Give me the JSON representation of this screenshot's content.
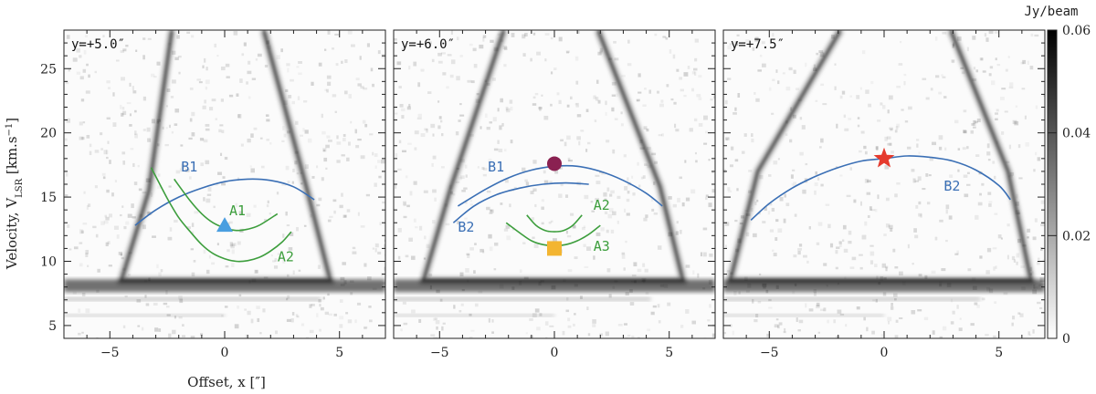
{
  "chart_data": {
    "type": "position-velocity diagram",
    "shared": {
      "xlabel": "Offset, x [″]",
      "ylabel_main": "Velocity, V",
      "ylabel_sub": "LSR",
      "ylabel_unit_pre": " [km.s",
      "ylabel_unit_exp": "−1",
      "ylabel_unit_post": "]",
      "xlim": [
        -7,
        7
      ],
      "ylim": [
        4,
        28
      ],
      "xticks": [
        -5,
        0,
        5
      ],
      "yticks": [
        5,
        10,
        15,
        20,
        25
      ],
      "colorbar": {
        "label": "Jy/beam",
        "range": [
          0,
          0.06
        ],
        "ticks": [
          "0",
          "0.02",
          "0.04",
          "0.06"
        ],
        "tick_values": [
          0,
          0.02,
          0.04,
          0.06
        ],
        "colormap": "grayscale (white to black)"
      }
    },
    "panels": [
      {
        "label": "y=+5.0″",
        "curves": [
          {
            "name": "B1",
            "color": "#3a6fb5",
            "x": [
              -3.9,
              -3,
              -2,
              -1,
              0,
              1,
              2,
              3,
              3.9
            ],
            "y": [
              12.8,
              14.0,
              15.0,
              15.7,
              16.2,
              16.4,
              16.3,
              15.8,
              14.8
            ],
            "label_x": -1.9,
            "label_y": 17.0
          },
          {
            "name": "A1",
            "color": "#3d9e3d",
            "x": [
              -2.2,
              -1.5,
              -1,
              -0.5,
              0,
              0.5,
              1,
              1.5,
              2.3
            ],
            "y": [
              16.4,
              14.7,
              13.7,
              13.0,
              12.6,
              12.4,
              12.5,
              12.8,
              13.7
            ],
            "label_x": 0.2,
            "label_y": 13.6
          },
          {
            "name": "A2",
            "color": "#3d9e3d",
            "x": [
              -3.2,
              -2.5,
              -2,
              -1.5,
              -1,
              -0.5,
              0,
              0.5,
              1,
              1.5,
              2,
              2.5,
              2.9
            ],
            "y": [
              17.3,
              14.9,
              13.4,
              12.3,
              11.3,
              10.6,
              10.2,
              10.0,
              10.05,
              10.3,
              10.8,
              11.5,
              12.3
            ],
            "label_x": 2.3,
            "label_y": 10.0
          }
        ],
        "markers": [
          {
            "name": "triangle",
            "color": "#4a9ee0",
            "x": 0.0,
            "y": 12.8
          }
        ]
      },
      {
        "label": "y=+6.0″",
        "curves": [
          {
            "name": "B1",
            "color": "#3a6fb5",
            "x": [
              -4.2,
              -3,
              -2,
              -1,
              0,
              1,
              2,
              3,
              4,
              4.7
            ],
            "y": [
              14.3,
              15.6,
              16.5,
              17.1,
              17.4,
              17.4,
              17.0,
              16.3,
              15.3,
              14.3
            ],
            "label_x": -2.9,
            "label_y": 17.0
          },
          {
            "name": "B2",
            "color": "#3a6fb5",
            "x": [
              -4.4,
              -3.5,
              -2.5,
              -1.5,
              -0.5,
              0.5,
              1.5
            ],
            "y": [
              13.0,
              14.3,
              15.2,
              15.7,
              16.0,
              16.1,
              16.0
            ],
            "label_x": -4.2,
            "label_y": 12.3
          },
          {
            "name": "A2",
            "color": "#3d9e3d",
            "x": [
              -1.2,
              -0.8,
              -0.4,
              0,
              0.4,
              0.8,
              1.2
            ],
            "y": [
              13.6,
              12.8,
              12.4,
              12.3,
              12.4,
              12.8,
              13.6
            ],
            "label_x": 1.7,
            "label_y": 14.0
          },
          {
            "name": "A3",
            "color": "#3d9e3d",
            "x": [
              -2.1,
              -1.5,
              -1,
              -0.5,
              0,
              0.5,
              1,
              1.5,
              2
            ],
            "y": [
              13.0,
              12.2,
              11.6,
              11.3,
              11.2,
              11.3,
              11.6,
              12.1,
              12.8
            ],
            "label_x": 1.7,
            "label_y": 10.8
          }
        ],
        "markers": [
          {
            "name": "circle",
            "color": "#8a2151",
            "x": 0.0,
            "y": 17.6
          },
          {
            "name": "square",
            "color": "#f3b531",
            "x": 0.0,
            "y": 11.0
          }
        ]
      },
      {
        "label": "y=+7.5″",
        "curves": [
          {
            "name": "B2",
            "color": "#3a6fb5",
            "x": [
              -5.8,
              -5,
              -4,
              -3,
              -2,
              -1,
              0,
              1,
              2,
              3,
              4,
              5,
              5.5
            ],
            "y": [
              13.2,
              14.5,
              15.7,
              16.6,
              17.3,
              17.8,
              18.0,
              18.2,
              18.1,
              17.8,
              17.1,
              15.9,
              14.8
            ],
            "label_x": 2.6,
            "label_y": 15.5
          }
        ],
        "markers": [
          {
            "name": "star",
            "color": "#e53a2d",
            "x": 0.0,
            "y": 18.0
          }
        ]
      }
    ]
  }
}
